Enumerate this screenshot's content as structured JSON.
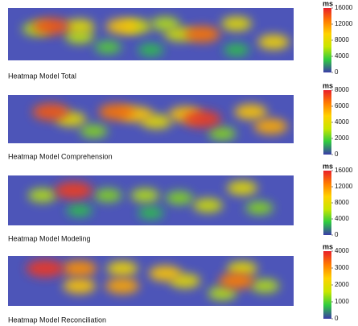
{
  "chart_data": [
    {
      "type": "heatmap",
      "title": "Heatmap Model Total",
      "colorbar_label": "ms",
      "clim": [
        0,
        16000
      ],
      "cticks": [
        0,
        4000,
        8000,
        12000,
        16000
      ],
      "colors": [
        "#3b3ba8",
        "#2ecc40",
        "#c8e600",
        "#ffd200",
        "#ff7b00",
        "#e8202a"
      ],
      "background": "#4d55b8",
      "xlim": [
        0,
        100
      ],
      "ylim": [
        0,
        20
      ],
      "x": [
        15,
        10,
        25,
        40,
        45,
        55,
        68,
        60,
        80,
        93,
        25,
        35,
        50,
        80
      ],
      "y": [
        13,
        12,
        13,
        13,
        13,
        14,
        10,
        10,
        14,
        7,
        9,
        5,
        4,
        4
      ],
      "values": [
        14000,
        6000,
        8000,
        10000,
        7000,
        6000,
        13000,
        7000,
        8000,
        9000,
        6000,
        4000,
        3000,
        3000
      ]
    },
    {
      "type": "heatmap",
      "title": "Heatmap Model Comprehension",
      "colorbar_label": "ms",
      "clim": [
        0,
        8000
      ],
      "cticks": [
        0,
        2000,
        4000,
        6000,
        8000
      ],
      "colors": [
        "#3b3ba8",
        "#2ecc40",
        "#c8e600",
        "#ffd200",
        "#ff7b00",
        "#e8202a"
      ],
      "background": "#4d55b8",
      "xlim": [
        0,
        100
      ],
      "ylim": [
        0,
        20
      ],
      "x": [
        15,
        38,
        45,
        68,
        62,
        85,
        92,
        22,
        52,
        30,
        75
      ],
      "y": [
        13,
        13,
        12,
        10,
        12,
        13,
        7,
        10,
        9,
        5,
        4
      ],
      "values": [
        7000,
        6500,
        5000,
        7500,
        5000,
        5000,
        5500,
        4000,
        4000,
        2500,
        2500
      ]
    },
    {
      "type": "heatmap",
      "title": "Heatmap Model Modeling",
      "colorbar_label": "ms",
      "clim": [
        0,
        16000
      ],
      "cticks": [
        0,
        4000,
        8000,
        12000,
        16000
      ],
      "colors": [
        "#3b3ba8",
        "#2ecc40",
        "#c8e600",
        "#ffd200",
        "#ff7b00",
        "#e8202a"
      ],
      "background": "#4d55b8",
      "xlim": [
        0,
        100
      ],
      "ylim": [
        0,
        20
      ],
      "x": [
        23,
        12,
        35,
        48,
        60,
        82,
        70,
        88,
        25,
        50
      ],
      "y": [
        14,
        12,
        12,
        12,
        11,
        15,
        8,
        7,
        6,
        5
      ],
      "values": [
        15000,
        6000,
        5000,
        6000,
        5000,
        8000,
        7000,
        5000,
        3000,
        3000
      ]
    },
    {
      "type": "heatmap",
      "title": "Heatmap Model Reconciliation",
      "colorbar_label": "ms",
      "clim": [
        0,
        4000
      ],
      "cticks": [
        0,
        1000,
        2000,
        3000,
        4000
      ],
      "colors": [
        "#3b3ba8",
        "#2ecc40",
        "#c8e600",
        "#ffd200",
        "#ff7b00",
        "#e8202a"
      ],
      "background": "#4d55b8",
      "xlim": [
        0,
        100
      ],
      "ylim": [
        0,
        20
      ],
      "x": [
        13,
        25,
        25,
        40,
        40,
        55,
        62,
        80,
        82,
        75,
        90
      ],
      "y": [
        15,
        15,
        8,
        8,
        15,
        13,
        10,
        10,
        15,
        5,
        8
      ],
      "values": [
        3800,
        3000,
        2500,
        2800,
        2200,
        2500,
        2000,
        3200,
        2000,
        1500,
        1500
      ]
    }
  ]
}
